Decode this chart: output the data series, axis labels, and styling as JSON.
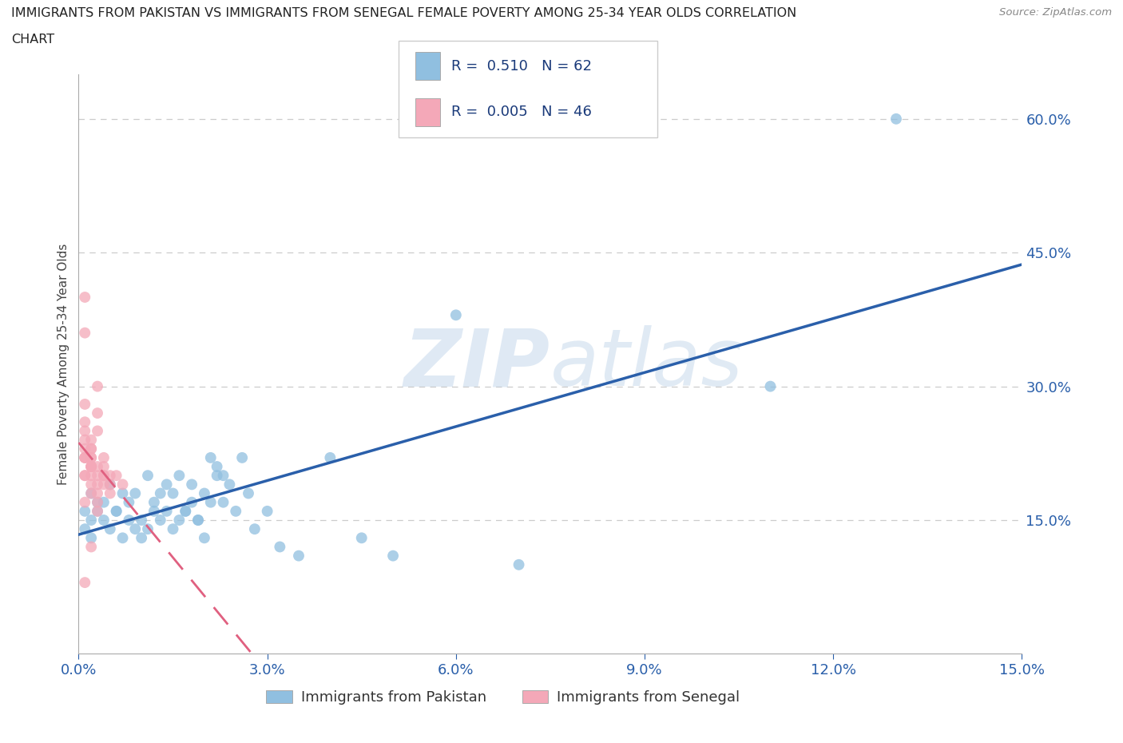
{
  "title_line1": "IMMIGRANTS FROM PAKISTAN VS IMMIGRANTS FROM SENEGAL FEMALE POVERTY AMONG 25-34 YEAR OLDS CORRELATION",
  "title_line2": "CHART",
  "source": "Source: ZipAtlas.com",
  "ylabel": "Female Poverty Among 25-34 Year Olds",
  "series1_label": "Immigrants from Pakistan",
  "series2_label": "Immigrants from Senegal",
  "R1": 0.51,
  "N1": 62,
  "R2": 0.005,
  "N2": 46,
  "color1": "#90bfe0",
  "color2": "#f4a8b8",
  "line1_color": "#2a5faa",
  "line2_color": "#e06080",
  "background": "#ffffff",
  "watermark_zip": "ZIP",
  "watermark_atlas": "atlas",
  "xmin": 0.0,
  "xmax": 0.15,
  "ymin": 0.0,
  "ymax": 0.65,
  "yticks_right": [
    0.15,
    0.3,
    0.45,
    0.6
  ],
  "xticks": [
    0.0,
    0.03,
    0.06,
    0.09,
    0.12,
    0.15
  ],
  "pakistan_x": [
    0.001,
    0.002,
    0.001,
    0.003,
    0.002,
    0.003,
    0.004,
    0.005,
    0.002,
    0.006,
    0.007,
    0.004,
    0.008,
    0.005,
    0.009,
    0.006,
    0.01,
    0.007,
    0.011,
    0.008,
    0.012,
    0.009,
    0.01,
    0.013,
    0.011,
    0.014,
    0.012,
    0.015,
    0.013,
    0.016,
    0.014,
    0.017,
    0.015,
    0.018,
    0.016,
    0.019,
    0.017,
    0.02,
    0.018,
    0.021,
    0.019,
    0.022,
    0.02,
    0.023,
    0.021,
    0.024,
    0.022,
    0.025,
    0.023,
    0.026,
    0.027,
    0.028,
    0.03,
    0.032,
    0.035,
    0.04,
    0.045,
    0.05,
    0.06,
    0.07,
    0.11,
    0.13
  ],
  "pakistan_y": [
    0.16,
    0.15,
    0.14,
    0.17,
    0.13,
    0.16,
    0.15,
    0.14,
    0.18,
    0.16,
    0.13,
    0.17,
    0.15,
    0.19,
    0.14,
    0.16,
    0.15,
    0.18,
    0.14,
    0.17,
    0.16,
    0.18,
    0.13,
    0.15,
    0.2,
    0.16,
    0.17,
    0.14,
    0.18,
    0.15,
    0.19,
    0.16,
    0.18,
    0.17,
    0.2,
    0.15,
    0.16,
    0.13,
    0.19,
    0.17,
    0.15,
    0.2,
    0.18,
    0.17,
    0.22,
    0.19,
    0.21,
    0.16,
    0.2,
    0.22,
    0.18,
    0.14,
    0.16,
    0.12,
    0.11,
    0.22,
    0.13,
    0.11,
    0.38,
    0.1,
    0.3,
    0.6
  ],
  "senegal_x": [
    0.001,
    0.001,
    0.002,
    0.001,
    0.002,
    0.001,
    0.002,
    0.003,
    0.001,
    0.002,
    0.003,
    0.001,
    0.002,
    0.003,
    0.001,
    0.002,
    0.001,
    0.003,
    0.002,
    0.001,
    0.003,
    0.002,
    0.001,
    0.004,
    0.002,
    0.003,
    0.001,
    0.004,
    0.002,
    0.005,
    0.003,
    0.001,
    0.004,
    0.002,
    0.005,
    0.003,
    0.006,
    0.002,
    0.004,
    0.001,
    0.005,
    0.003,
    0.007,
    0.002,
    0.004,
    0.001
  ],
  "senegal_y": [
    0.2,
    0.22,
    0.19,
    0.24,
    0.21,
    0.23,
    0.18,
    0.2,
    0.26,
    0.22,
    0.17,
    0.25,
    0.2,
    0.19,
    0.28,
    0.21,
    0.4,
    0.18,
    0.23,
    0.22,
    0.16,
    0.24,
    0.2,
    0.19,
    0.21,
    0.25,
    0.22,
    0.2,
    0.23,
    0.18,
    0.21,
    0.36,
    0.2,
    0.22,
    0.19,
    0.3,
    0.2,
    0.21,
    0.22,
    0.17,
    0.2,
    0.27,
    0.19,
    0.12,
    0.21,
    0.08
  ]
}
